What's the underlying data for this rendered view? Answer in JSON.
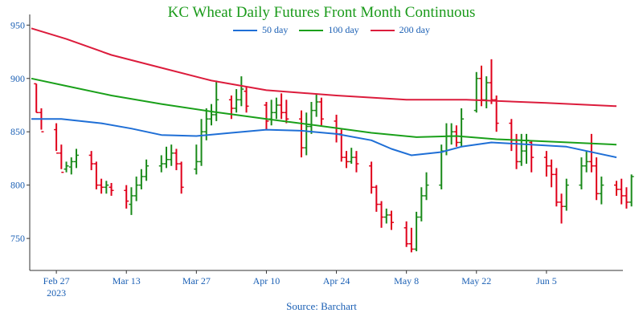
{
  "chart_data": {
    "type": "ohlc+line",
    "title": "KC Wheat Daily Futures Front Month Continuous",
    "source": "Source: Barchart",
    "colors": {
      "up": "#1a8a1a",
      "down": "#e0001b",
      "ma50": "#1f6fd6",
      "ma100": "#1aa01a",
      "ma200": "#dc1c3c",
      "axis": "#1a5fb4",
      "title": "#1a9a1a"
    },
    "ylim": [
      720,
      960
    ],
    "y_ticks": [
      750,
      800,
      850,
      900,
      950
    ],
    "x_ticks": [
      {
        "date": "2023-02-27",
        "label": "Feb 27",
        "sublabel": "2023"
      },
      {
        "date": "2023-03-13",
        "label": "Mar 13",
        "sublabel": ""
      },
      {
        "date": "2023-03-27",
        "label": "Mar 27",
        "sublabel": ""
      },
      {
        "date": "2023-04-10",
        "label": "Apr 10",
        "sublabel": ""
      },
      {
        "date": "2023-04-24",
        "label": "Apr 24",
        "sublabel": ""
      },
      {
        "date": "2023-05-08",
        "label": "May 8",
        "sublabel": ""
      },
      {
        "date": "2023-05-22",
        "label": "May 22",
        "sublabel": ""
      },
      {
        "date": "2023-06-05",
        "label": "Jun 5",
        "sublabel": ""
      }
    ],
    "x_range": [
      "2023-02-22",
      "2023-06-19"
    ],
    "legend": [
      {
        "key": "ma50",
        "label": "50 day",
        "color": "#1f6fd6"
      },
      {
        "key": "ma100",
        "label": "100 day",
        "color": "#1aa01a"
      },
      {
        "key": "ma200",
        "label": "200 day",
        "color": "#dc1c3c"
      }
    ],
    "series": [
      {
        "name": "50 day",
        "key": "ma50",
        "points": [
          [
            "2023-02-22",
            862
          ],
          [
            "2023-02-28",
            862
          ],
          [
            "2023-03-08",
            858
          ],
          [
            "2023-03-14",
            853
          ],
          [
            "2023-03-20",
            847
          ],
          [
            "2023-03-27",
            846
          ],
          [
            "2023-04-03",
            849
          ],
          [
            "2023-04-10",
            852
          ],
          [
            "2023-04-17",
            851
          ],
          [
            "2023-04-24",
            848
          ],
          [
            "2023-05-01",
            842
          ],
          [
            "2023-05-05",
            834
          ],
          [
            "2023-05-09",
            828
          ],
          [
            "2023-05-15",
            831
          ],
          [
            "2023-05-19",
            836
          ],
          [
            "2023-05-25",
            840
          ],
          [
            "2023-06-02",
            838
          ],
          [
            "2023-06-09",
            836
          ],
          [
            "2023-06-19",
            826
          ]
        ]
      },
      {
        "name": "100 day",
        "key": "ma100",
        "points": [
          [
            "2023-02-22",
            900
          ],
          [
            "2023-03-01",
            893
          ],
          [
            "2023-03-10",
            884
          ],
          [
            "2023-03-20",
            876
          ],
          [
            "2023-03-30",
            869
          ],
          [
            "2023-04-10",
            862
          ],
          [
            "2023-04-20",
            856
          ],
          [
            "2023-05-01",
            849
          ],
          [
            "2023-05-10",
            845
          ],
          [
            "2023-05-18",
            846
          ],
          [
            "2023-05-26",
            843
          ],
          [
            "2023-06-05",
            841
          ],
          [
            "2023-06-19",
            838
          ]
        ]
      },
      {
        "name": "200 day",
        "key": "ma200",
        "points": [
          [
            "2023-02-22",
            947
          ],
          [
            "2023-03-01",
            937
          ],
          [
            "2023-03-10",
            922
          ],
          [
            "2023-03-20",
            910
          ],
          [
            "2023-03-30",
            898
          ],
          [
            "2023-04-10",
            889
          ],
          [
            "2023-04-24",
            884
          ],
          [
            "2023-05-08",
            880
          ],
          [
            "2023-05-20",
            880
          ],
          [
            "2023-06-05",
            877
          ],
          [
            "2023-06-19",
            874
          ]
        ]
      }
    ],
    "ohlc": [
      [
        "2023-02-23",
        895,
        868,
        895,
        868
      ],
      [
        "2023-02-24",
        868,
        850,
        872,
        852
      ],
      [
        "2023-02-27",
        852,
        830,
        858,
        832
      ],
      [
        "2023-02-28",
        830,
        812,
        838,
        815
      ],
      [
        "2023-03-01",
        815,
        818,
        822,
        812
      ],
      [
        "2023-03-02",
        817,
        822,
        826,
        810
      ],
      [
        "2023-03-03",
        822,
        828,
        834,
        816
      ],
      [
        "2023-03-06",
        828,
        820,
        832,
        814
      ],
      [
        "2023-03-07",
        820,
        800,
        822,
        796
      ],
      [
        "2023-03-08",
        800,
        798,
        806,
        792
      ],
      [
        "2023-03-09",
        798,
        800,
        804,
        792
      ],
      [
        "2023-03-10",
        798,
        795,
        802,
        790
      ],
      [
        "2023-03-13",
        795,
        785,
        800,
        778
      ],
      [
        "2023-03-14",
        782,
        790,
        798,
        772
      ],
      [
        "2023-03-15",
        790,
        800,
        808,
        785
      ],
      [
        "2023-03-16",
        800,
        808,
        815,
        796
      ],
      [
        "2023-03-17",
        808,
        818,
        824,
        804
      ],
      [
        "2023-03-20",
        818,
        820,
        828,
        812
      ],
      [
        "2023-03-21",
        820,
        824,
        836,
        816
      ],
      [
        "2023-03-22",
        824,
        830,
        838,
        818
      ],
      [
        "2023-03-23",
        830,
        820,
        834,
        814
      ],
      [
        "2023-03-24",
        820,
        798,
        822,
        792
      ],
      [
        "2023-03-27",
        815,
        822,
        838,
        810
      ],
      [
        "2023-03-28",
        822,
        850,
        862,
        818
      ],
      [
        "2023-03-29",
        850,
        862,
        872,
        842
      ],
      [
        "2023-03-30",
        862,
        866,
        876,
        856
      ],
      [
        "2023-03-31",
        866,
        880,
        898,
        860
      ],
      [
        "2023-04-03",
        880,
        872,
        884,
        862
      ],
      [
        "2023-04-04",
        872,
        880,
        890,
        868
      ],
      [
        "2023-04-05",
        880,
        890,
        902,
        874
      ],
      [
        "2023-04-06",
        888,
        874,
        892,
        868
      ],
      [
        "2023-04-10",
        875,
        860,
        878,
        852
      ],
      [
        "2023-04-11",
        862,
        868,
        880,
        856
      ],
      [
        "2023-04-12",
        868,
        875,
        882,
        862
      ],
      [
        "2023-04-13",
        875,
        868,
        886,
        862
      ],
      [
        "2023-04-14",
        868,
        862,
        880,
        858
      ],
      [
        "2023-04-17",
        862,
        835,
        870,
        826
      ],
      [
        "2023-04-18",
        835,
        855,
        868,
        828
      ],
      [
        "2023-04-19",
        855,
        870,
        878,
        848
      ],
      [
        "2023-04-20",
        870,
        878,
        886,
        864
      ],
      [
        "2023-04-21",
        878,
        862,
        882,
        856
      ],
      [
        "2023-04-24",
        860,
        848,
        866,
        840
      ],
      [
        "2023-04-25",
        848,
        826,
        852,
        822
      ],
      [
        "2023-04-26",
        826,
        822,
        832,
        816
      ],
      [
        "2023-04-27",
        822,
        826,
        835,
        820
      ],
      [
        "2023-04-28",
        826,
        820,
        832,
        812
      ],
      [
        "2023-05-01",
        818,
        798,
        822,
        792
      ],
      [
        "2023-05-02",
        798,
        782,
        800,
        775
      ],
      [
        "2023-05-03",
        782,
        770,
        785,
        760
      ],
      [
        "2023-05-04",
        770,
        772,
        778,
        764
      ],
      [
        "2023-05-05",
        772,
        765,
        776,
        758
      ],
      [
        "2023-05-08",
        760,
        745,
        766,
        742
      ],
      [
        "2023-05-09",
        745,
        740,
        760,
        737
      ],
      [
        "2023-05-10",
        740,
        770,
        775,
        738
      ],
      [
        "2023-05-11",
        770,
        790,
        798,
        766
      ],
      [
        "2023-05-12",
        790,
        800,
        812,
        786
      ],
      [
        "2023-05-15",
        800,
        832,
        838,
        796
      ],
      [
        "2023-05-16",
        832,
        846,
        858,
        828
      ],
      [
        "2023-05-17",
        846,
        850,
        858,
        838
      ],
      [
        "2023-05-18",
        850,
        840,
        856,
        836
      ],
      [
        "2023-05-19",
        840,
        862,
        872,
        836
      ],
      [
        "2023-05-22",
        870,
        900,
        906,
        868
      ],
      [
        "2023-05-23",
        900,
        880,
        912,
        874
      ],
      [
        "2023-05-24",
        880,
        896,
        902,
        872
      ],
      [
        "2023-05-25",
        896,
        880,
        918,
        876
      ],
      [
        "2023-05-26",
        880,
        858,
        884,
        850
      ],
      [
        "2023-05-29",
        858,
        842,
        862,
        832
      ],
      [
        "2023-05-30",
        842,
        822,
        848,
        815
      ],
      [
        "2023-05-31",
        822,
        832,
        848,
        818
      ],
      [
        "2023-06-01",
        832,
        842,
        848,
        820
      ],
      [
        "2023-06-02",
        840,
        826,
        842,
        812
      ],
      [
        "2023-06-05",
        826,
        818,
        832,
        808
      ],
      [
        "2023-06-06",
        818,
        810,
        824,
        798
      ],
      [
        "2023-06-07",
        810,
        784,
        816,
        780
      ],
      [
        "2023-06-08",
        784,
        780,
        792,
        764
      ],
      [
        "2023-06-09",
        780,
        800,
        806,
        776
      ],
      [
        "2023-06-12",
        800,
        818,
        826,
        796
      ],
      [
        "2023-06-13",
        818,
        822,
        832,
        812
      ],
      [
        "2023-06-14",
        822,
        818,
        848,
        812
      ],
      [
        "2023-06-15",
        818,
        792,
        826,
        786
      ],
      [
        "2023-06-16",
        792,
        800,
        808,
        782
      ],
      [
        "2023-06-19",
        800,
        796,
        804,
        790
      ],
      [
        "2023-06-20",
        796,
        790,
        806,
        782
      ],
      [
        "2023-06-21",
        790,
        784,
        798,
        778
      ],
      [
        "2023-06-22",
        784,
        808,
        810,
        780
      ]
    ]
  }
}
